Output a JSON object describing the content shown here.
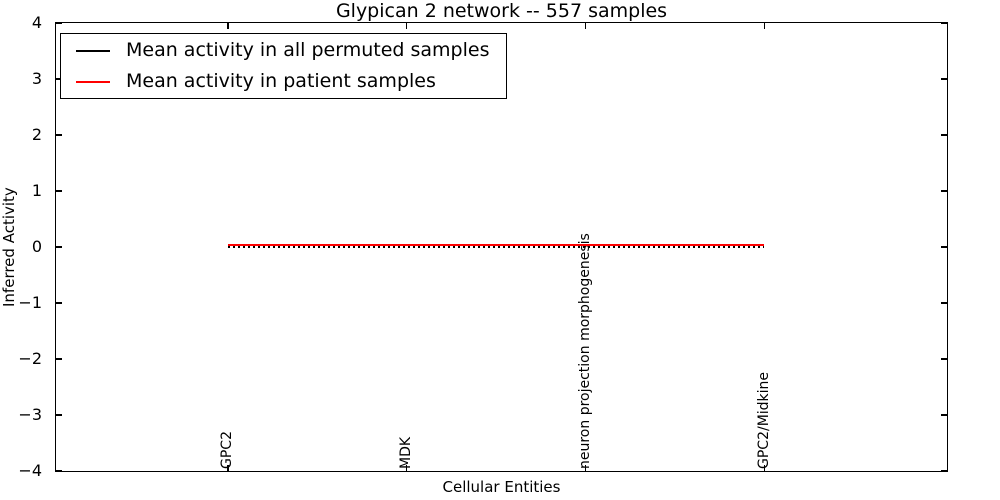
{
  "chart_data": {
    "type": "line",
    "title": "Glypican 2 network -- 557 samples",
    "xlabel": "Cellular Entities",
    "ylabel": "Inferred Activity",
    "xlim": [
      -0.96,
      4.02
    ],
    "ylim": [
      -4,
      4
    ],
    "yticks": [
      4,
      3,
      2,
      1,
      0,
      -1,
      -2,
      -3,
      -4
    ],
    "grid": false,
    "legend_position": "upper left",
    "categories": [
      "GPC2",
      "MDK",
      "neuron projection morphogenesis",
      "GPC2/Midkine"
    ],
    "series": [
      {
        "id": "permuted",
        "name": "Mean activity in all permuted samples",
        "color": "#000000",
        "style": "dotted",
        "values": [
          0.0,
          0.0,
          0.0,
          0.0
        ]
      },
      {
        "id": "patient",
        "name": "Mean activity in patient samples",
        "color": "#ff0000",
        "style": "solid",
        "values": [
          0.04,
          0.04,
          0.04,
          0.04
        ]
      }
    ]
  }
}
